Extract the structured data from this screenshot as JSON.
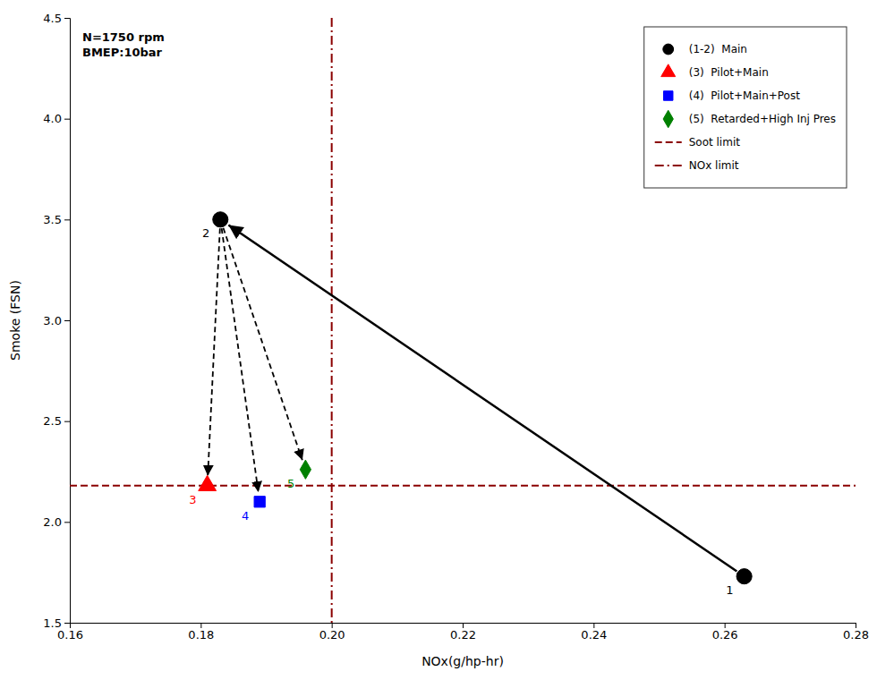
{
  "chart_data": {
    "type": "scatter",
    "xlabel": "NOx(g/hp-hr)",
    "ylabel": "Smoke (FSN)",
    "xlim": [
      0.16,
      0.28
    ],
    "ylim": [
      1.5,
      4.5
    ],
    "xticks": [
      0.16,
      0.18,
      {
        "value": 0.2,
        "label": "0.20"
      },
      0.22,
      0.24,
      0.26,
      0.28
    ],
    "yticks": [
      1.5,
      {
        "value": 2,
        "label": "2.0"
      },
      2.5,
      {
        "value": 3,
        "label": "3.0"
      },
      3.5,
      {
        "value": 4,
        "label": "4.0"
      },
      4.5
    ],
    "grid": false,
    "legend": "upper right",
    "annotation": "N=1750 rpm\nBMEP:10bar",
    "series": [
      {
        "name": "(1-2)  Main",
        "color": "black",
        "marker": "circle",
        "x": [
          0.263,
          0.183
        ],
        "values": [
          1.73,
          3.5
        ],
        "point_labels": [
          "1",
          "2"
        ]
      },
      {
        "name": "(3)  Pilot+Main",
        "color": "red",
        "marker": "triangle",
        "x": [
          0.181
        ],
        "values": [
          2.18
        ],
        "point_labels": [
          "3"
        ]
      },
      {
        "name": "(4)  Pilot+Main+Post",
        "color": "blue",
        "marker": "square",
        "x": [
          0.189
        ],
        "values": [
          2.1
        ],
        "point_labels": [
          "4"
        ]
      },
      {
        "name": "(5)  Retarded+High Inj Pres",
        "color": "green",
        "marker": "diamond",
        "x": [
          0.196
        ],
        "values": [
          2.26
        ],
        "point_labels": [
          "5"
        ]
      }
    ],
    "reference_lines": [
      {
        "name": "Soot limit",
        "axis": "y",
        "value": 2.18,
        "line_style": "dashed",
        "color": "#8B0000"
      },
      {
        "name": "NOx limit",
        "axis": "x",
        "value": 0.2,
        "line_style": "dashdot",
        "color": "#8B0000"
      }
    ]
  }
}
